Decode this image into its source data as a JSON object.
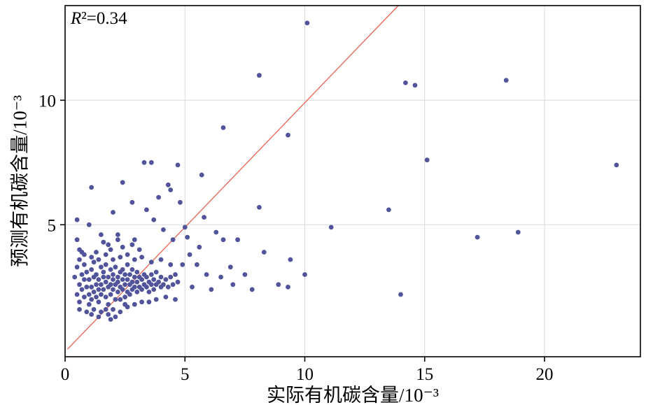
{
  "figure": {
    "r2_var": "R",
    "r2_rest": "²=0.34"
  },
  "chart_data": {
    "type": "scatter",
    "title": "",
    "xlabel": "实际有机碳含量/10⁻³",
    "ylabel": "预测有机碳含量/10⁻³",
    "annotation": "R²=0.34",
    "xlim": [
      0,
      24
    ],
    "ylim": [
      -0.3,
      13.8
    ],
    "xticks": [
      0,
      5,
      10,
      15,
      20
    ],
    "yticks": [
      5,
      10
    ],
    "grid": true,
    "grid_color": "#d9d9d9",
    "point_color": "#51549b",
    "line_color": "#e8634f",
    "legend_position": "none",
    "trendline": {
      "x1": 0.1,
      "y1": 0.0,
      "x2": 13.9,
      "y2": 13.8
    },
    "points": [
      [
        0.4,
        2.9
      ],
      [
        0.5,
        2.2
      ],
      [
        0.5,
        3.3
      ],
      [
        0.6,
        2.6
      ],
      [
        0.6,
        1.9
      ],
      [
        0.7,
        3.0
      ],
      [
        0.7,
        2.4
      ],
      [
        0.8,
        2.8
      ],
      [
        0.8,
        2.1
      ],
      [
        0.8,
        3.4
      ],
      [
        0.9,
        2.5
      ],
      [
        0.9,
        3.1
      ],
      [
        1.0,
        2.2
      ],
      [
        1.0,
        2.8
      ],
      [
        1.0,
        1.8
      ],
      [
        1.1,
        3.2
      ],
      [
        1.1,
        2.5
      ],
      [
        1.1,
        2.0
      ],
      [
        1.2,
        2.9
      ],
      [
        1.2,
        2.3
      ],
      [
        1.2,
        3.5
      ],
      [
        1.3,
        2.6
      ],
      [
        1.3,
        2.1
      ],
      [
        1.3,
        3.0
      ],
      [
        1.4,
        2.4
      ],
      [
        1.4,
        2.8
      ],
      [
        1.4,
        1.9
      ],
      [
        1.5,
        3.3
      ],
      [
        1.5,
        2.6
      ],
      [
        1.5,
        2.2
      ],
      [
        1.6,
        2.9
      ],
      [
        1.6,
        2.4
      ],
      [
        1.6,
        3.1
      ],
      [
        1.7,
        2.7
      ],
      [
        1.7,
        2.1
      ],
      [
        1.7,
        3.4
      ],
      [
        1.8,
        2.5
      ],
      [
        1.8,
        2.9
      ],
      [
        1.8,
        1.8
      ],
      [
        1.9,
        3.2
      ],
      [
        1.9,
        2.6
      ],
      [
        1.9,
        2.2
      ],
      [
        2.0,
        2.8
      ],
      [
        2.0,
        2.4
      ],
      [
        2.0,
        3.0
      ],
      [
        2.1,
        2.6
      ],
      [
        2.1,
        2.0
      ],
      [
        2.1,
        3.3
      ],
      [
        2.2,
        2.9
      ],
      [
        2.2,
        2.3
      ],
      [
        2.2,
        2.7
      ],
      [
        2.3,
        3.1
      ],
      [
        2.3,
        2.5
      ],
      [
        2.3,
        2.0
      ],
      [
        2.4,
        2.8
      ],
      [
        2.4,
        2.4
      ],
      [
        2.4,
        3.2
      ],
      [
        2.5,
        2.6
      ],
      [
        2.5,
        2.1
      ],
      [
        2.5,
        3.0
      ],
      [
        2.6,
        2.8
      ],
      [
        2.6,
        2.3
      ],
      [
        2.6,
        3.4
      ],
      [
        2.7,
        2.6
      ],
      [
        2.7,
        2.2
      ],
      [
        2.7,
        3.0
      ],
      [
        2.8,
        2.7
      ],
      [
        2.8,
        2.4
      ],
      [
        2.8,
        3.2
      ],
      [
        2.9,
        2.5
      ],
      [
        2.9,
        2.9
      ],
      [
        3.0,
        2.3
      ],
      [
        3.0,
        2.7
      ],
      [
        3.0,
        3.1
      ],
      [
        3.1,
        2.5
      ],
      [
        3.1,
        2.9
      ],
      [
        3.2,
        2.4
      ],
      [
        3.2,
        2.8
      ],
      [
        3.3,
        2.6
      ],
      [
        3.3,
        3.0
      ],
      [
        3.4,
        2.5
      ],
      [
        3.4,
        2.9
      ],
      [
        3.5,
        2.7
      ],
      [
        3.5,
        2.3
      ],
      [
        3.6,
        3.0
      ],
      [
        3.6,
        2.6
      ],
      [
        3.7,
        2.8
      ],
      [
        3.7,
        2.4
      ],
      [
        3.8,
        2.6
      ],
      [
        3.8,
        3.1
      ],
      [
        3.9,
        2.7
      ],
      [
        4.0,
        2.5
      ],
      [
        4.0,
        2.9
      ],
      [
        4.1,
        2.6
      ],
      [
        4.2,
        2.8
      ],
      [
        4.3,
        2.5
      ],
      [
        4.4,
        2.9
      ],
      [
        4.5,
        2.6
      ],
      [
        4.6,
        3.0
      ],
      [
        4.7,
        2.7
      ],
      [
        0.9,
        1.5
      ],
      [
        1.2,
        1.6
      ],
      [
        1.5,
        1.5
      ],
      [
        1.8,
        1.4
      ],
      [
        2.0,
        1.6
      ],
      [
        2.3,
        1.5
      ],
      [
        2.6,
        1.7
      ],
      [
        1.4,
        1.3
      ],
      [
        1.1,
        1.4
      ],
      [
        2.9,
        1.8
      ],
      [
        3.2,
        1.9
      ],
      [
        0.6,
        1.6
      ],
      [
        2.1,
        1.3
      ],
      [
        1.7,
        1.6
      ],
      [
        2.5,
        1.8
      ],
      [
        3.5,
        1.9
      ],
      [
        3.8,
        2.0
      ],
      [
        4.2,
        2.1
      ],
      [
        4.6,
        2.0
      ],
      [
        1.9,
        1.2
      ],
      [
        0.8,
        3.8
      ],
      [
        1.1,
        3.7
      ],
      [
        1.4,
        3.6
      ],
      [
        1.7,
        3.8
      ],
      [
        2.0,
        3.6
      ],
      [
        2.3,
        3.7
      ],
      [
        2.6,
        3.8
      ],
      [
        2.9,
        3.6
      ],
      [
        3.2,
        3.7
      ],
      [
        1.9,
        4.0
      ],
      [
        2.4,
        4.1
      ],
      [
        1.3,
        3.9
      ],
      [
        0.6,
        3.6
      ],
      [
        3.6,
        3.5
      ],
      [
        4.0,
        3.6
      ],
      [
        4.4,
        3.4
      ],
      [
        2.8,
        4.2
      ],
      [
        3.1,
        4.0
      ],
      [
        1.6,
        4.3
      ],
      [
        2.2,
        4.4
      ],
      [
        0.5,
        5.2
      ],
      [
        1.0,
        5.0
      ],
      [
        1.1,
        6.5
      ],
      [
        2.4,
        6.7
      ],
      [
        2.8,
        5.9
      ],
      [
        0.6,
        4.0
      ],
      [
        0.7,
        3.9
      ],
      [
        0.5,
        4.4
      ],
      [
        1.8,
        4.2
      ],
      [
        2.2,
        4.6
      ],
      [
        2.9,
        4.4
      ],
      [
        3.4,
        5.6
      ],
      [
        3.7,
        5.2
      ],
      [
        4.1,
        4.8
      ],
      [
        4.5,
        4.4
      ],
      [
        2.0,
        5.5
      ],
      [
        1.5,
        4.6
      ],
      [
        3.3,
        7.5
      ],
      [
        3.6,
        7.5
      ],
      [
        4.7,
        7.4
      ],
      [
        4.4,
        6.4
      ],
      [
        4.3,
        6.6
      ],
      [
        3.9,
        6.1
      ],
      [
        5.1,
        4.5
      ],
      [
        5.6,
        4.1
      ],
      [
        6.3,
        4.7
      ],
      [
        6.6,
        4.4
      ],
      [
        7.2,
        4.4
      ],
      [
        5.8,
        5.3
      ],
      [
        5.0,
        4.9
      ],
      [
        6.9,
        3.3
      ],
      [
        7.5,
        3.0
      ],
      [
        8.3,
        3.9
      ],
      [
        6.1,
        2.4
      ],
      [
        5.3,
        2.5
      ],
      [
        5.9,
        3.0
      ],
      [
        4.9,
        3.4
      ],
      [
        5.2,
        3.8
      ],
      [
        8.1,
        5.7
      ],
      [
        9.4,
        3.6
      ],
      [
        10.0,
        3.0
      ],
      [
        8.9,
        2.6
      ],
      [
        9.3,
        2.5
      ],
      [
        6.5,
        2.9
      ],
      [
        7.0,
        2.6
      ],
      [
        7.8,
        2.4
      ],
      [
        5.5,
        3.4
      ],
      [
        4.8,
        5.9
      ],
      [
        10.1,
        13.1
      ],
      [
        8.1,
        11.0
      ],
      [
        14.2,
        10.7
      ],
      [
        14.6,
        10.6
      ],
      [
        18.4,
        10.8
      ],
      [
        6.6,
        8.9
      ],
      [
        9.3,
        8.6
      ],
      [
        15.1,
        7.6
      ],
      [
        23.0,
        7.4
      ],
      [
        13.5,
        5.6
      ],
      [
        17.2,
        4.5
      ],
      [
        18.9,
        4.7
      ],
      [
        11.1,
        4.9
      ],
      [
        14.0,
        2.2
      ],
      [
        5.7,
        7.0
      ]
    ]
  }
}
